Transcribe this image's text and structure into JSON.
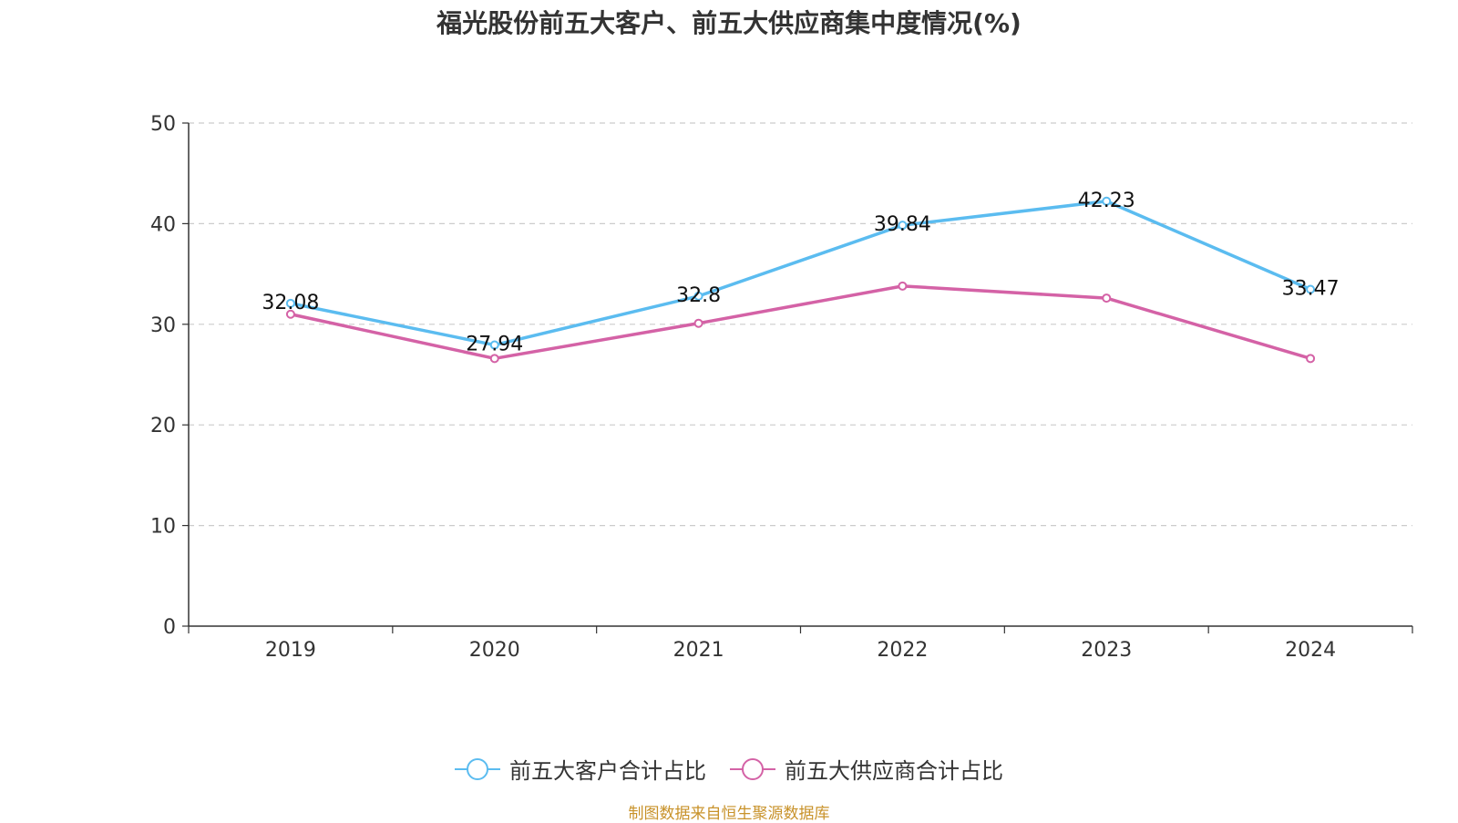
{
  "title": "福光股份前五大客户、前五大供应商集中度情况(%)",
  "source": "制图数据来自恒生聚源数据库",
  "colors": {
    "series1": "#5bbcf0",
    "series2": "#d462a6",
    "source": "#c8922a",
    "axis": "#333333",
    "grid": "#cccccc"
  },
  "chart_data": {
    "type": "line",
    "title": "福光股份前五大客户、前五大供应商集中度情况(%)",
    "categories": [
      "2019",
      "2020",
      "2021",
      "2022",
      "2023",
      "2024"
    ],
    "ylim": [
      0,
      50
    ],
    "yticks": [
      "0",
      "10",
      "20",
      "30",
      "40",
      "50"
    ],
    "grid": "horizontal dashed",
    "legend_position": "bottom-center",
    "series": [
      {
        "name": "前五大客户合计占比",
        "values": [
          32.08,
          27.94,
          32.8,
          39.84,
          42.23,
          33.47
        ],
        "labels": [
          "32.08",
          "27.94",
          "32.8",
          "39.84",
          "42.23",
          "33.47"
        ]
      },
      {
        "name": "前五大供应商合计占比",
        "values": [
          31.0,
          26.6,
          30.1,
          33.8,
          32.6,
          26.6
        ]
      }
    ]
  }
}
